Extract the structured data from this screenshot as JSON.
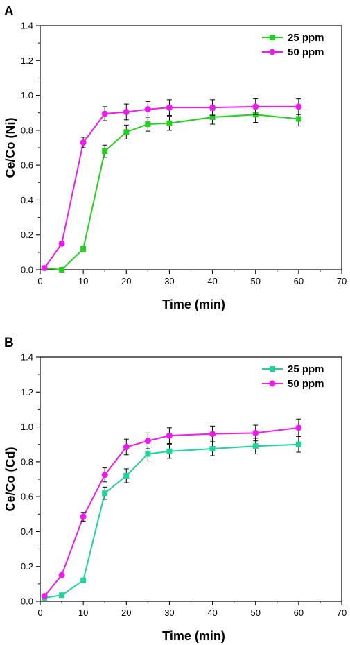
{
  "chart_data": [
    {
      "panel": "A",
      "type": "line",
      "xlabel": "Time (min)",
      "ylabel": "Ce/Co (Ni)",
      "xlim": [
        0,
        70
      ],
      "ylim": [
        0.0,
        1.4
      ],
      "xticks": [
        0,
        10,
        20,
        30,
        40,
        50,
        60,
        70
      ],
      "yticks": [
        "0.0",
        "0.2",
        "0.4",
        "0.6",
        "0.8",
        "1.0",
        "1.2",
        "1.4"
      ],
      "legend_position": "top-right",
      "grid": false,
      "series": [
        {
          "name": "25 ppm",
          "color": "#22d11e",
          "marker": "square",
          "x": [
            1,
            5,
            10,
            15,
            20,
            25,
            30,
            40,
            50,
            60
          ],
          "y": [
            0.01,
            0.0,
            0.12,
            0.68,
            0.79,
            0.835,
            0.84,
            0.875,
            0.89,
            0.865
          ],
          "err": [
            0.005,
            0.005,
            0.01,
            0.035,
            0.04,
            0.04,
            0.04,
            0.04,
            0.045,
            0.04
          ]
        },
        {
          "name": "50 ppm",
          "color": "#ee1aee",
          "marker": "circle",
          "x": [
            1,
            5,
            10,
            15,
            20,
            25,
            30,
            40,
            50,
            60
          ],
          "y": [
            0.01,
            0.15,
            0.73,
            0.895,
            0.905,
            0.92,
            0.93,
            0.93,
            0.935,
            0.935
          ],
          "err": [
            0.005,
            0.01,
            0.03,
            0.04,
            0.045,
            0.045,
            0.045,
            0.045,
            0.045,
            0.045
          ]
        }
      ]
    },
    {
      "panel": "B",
      "type": "line",
      "xlabel": "Time (min)",
      "ylabel": "Ce/Co (Cd)",
      "xlim": [
        0,
        70
      ],
      "ylim": [
        0.0,
        1.4
      ],
      "xticks": [
        0,
        10,
        20,
        30,
        40,
        50,
        60,
        70
      ],
      "yticks": [
        "0.0",
        "0.2",
        "0.4",
        "0.6",
        "0.8",
        "1.0",
        "1.2",
        "1.4"
      ],
      "legend_position": "top-right",
      "grid": false,
      "series": [
        {
          "name": "25 ppm",
          "color": "#1fd49a",
          "marker": "square",
          "x": [
            1,
            5,
            10,
            15,
            20,
            25,
            30,
            40,
            50,
            60
          ],
          "y": [
            0.02,
            0.035,
            0.12,
            0.62,
            0.72,
            0.845,
            0.86,
            0.875,
            0.89,
            0.9
          ],
          "err": [
            0.005,
            0.008,
            0.01,
            0.035,
            0.04,
            0.04,
            0.04,
            0.04,
            0.045,
            0.045
          ]
        },
        {
          "name": "50 ppm",
          "color": "#ee1aee",
          "marker": "circle",
          "x": [
            1,
            5,
            10,
            15,
            20,
            25,
            30,
            40,
            50,
            60
          ],
          "y": [
            0.03,
            0.15,
            0.485,
            0.725,
            0.885,
            0.92,
            0.95,
            0.96,
            0.965,
            0.995
          ],
          "err": [
            0.005,
            0.01,
            0.025,
            0.04,
            0.045,
            0.045,
            0.045,
            0.045,
            0.045,
            0.05
          ]
        }
      ]
    }
  ]
}
